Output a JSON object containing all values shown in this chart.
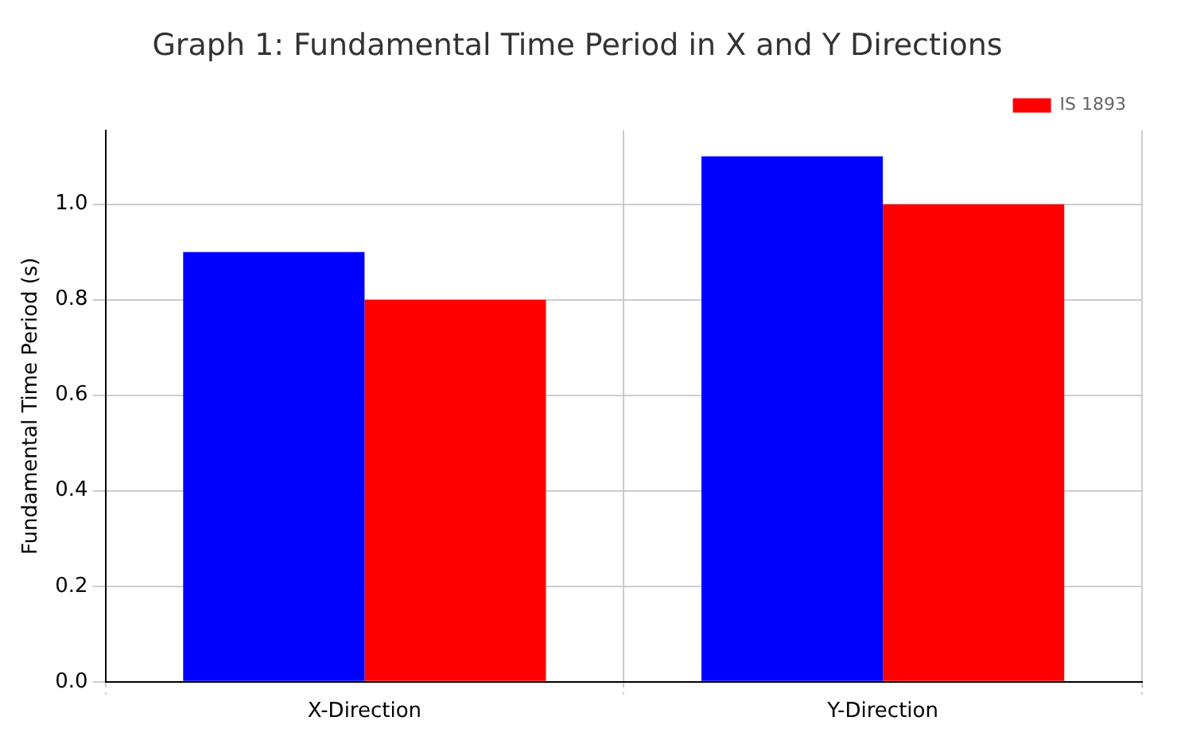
{
  "chart_data": {
    "type": "bar",
    "title": "Graph 1: Fundamental Time Period in X and Y Directions",
    "ylabel": "Fundamental Time Period (s)",
    "categories": [
      "X-Direction",
      "Y-Direction"
    ],
    "series": [
      {
        "color": "#0000ff",
        "values": [
          0.9,
          1.1
        ]
      },
      {
        "name": "IS 1893",
        "color": "#ff0000",
        "values": [
          0.8,
          1.0
        ]
      }
    ],
    "ylim": [
      0,
      1.155
    ],
    "yticks": [
      {
        "value": 0,
        "label": "0.0"
      },
      {
        "value": 0.2,
        "label": "0.2"
      },
      {
        "value": 0.4,
        "label": "0.4"
      },
      {
        "value": 0.6,
        "label": "0.6"
      },
      {
        "value": 0.8,
        "label": "0.8"
      },
      {
        "value": 1.0,
        "label": "1.0"
      }
    ],
    "grid": true,
    "legend": "top right"
  }
}
